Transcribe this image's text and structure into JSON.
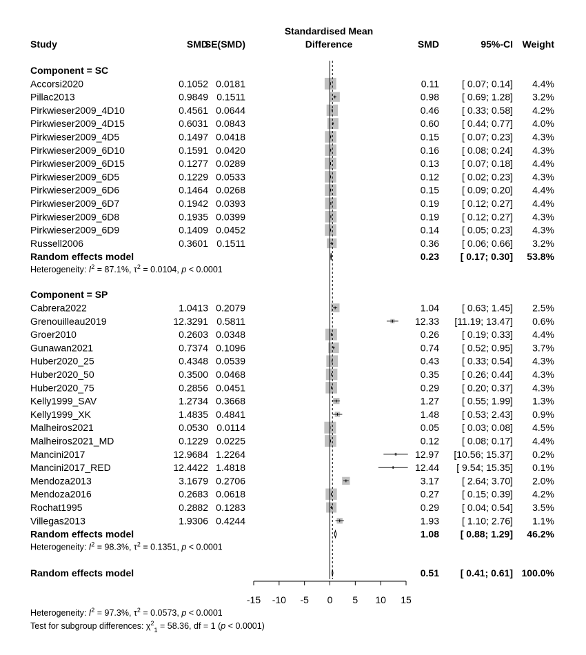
{
  "chart_data": {
    "type": "forest",
    "columns": {
      "study": "Study",
      "smd": "SMD",
      "se": "SE(SMD)",
      "plot_title_line1": "Standardised Mean",
      "plot_title_line2": "Difference",
      "smd_right": "SMD",
      "ci": "95%-CI",
      "weight": "Weight"
    },
    "x_axis": {
      "min": -15,
      "max": 15,
      "ticks": [
        -15,
        -10,
        -5,
        0,
        5,
        10,
        15
      ],
      "tick_labels": [
        "-15",
        "-10",
        "-5",
        "0",
        "5",
        "10",
        "15"
      ],
      "reference_line": 0,
      "pooled_line": 0.51
    },
    "subgroups": [
      {
        "header": "Component = SC",
        "studies": [
          {
            "name": "Accorsi2020",
            "smd": "0.1052",
            "se": "0.0181",
            "est": 0.11,
            "lo": 0.07,
            "hi": 0.14,
            "smd_txt": "0.11",
            "ci_txt": "[ 0.07;  0.14]",
            "weight": 4.4,
            "weight_txt": "4.4%"
          },
          {
            "name": "Pillac2013",
            "smd": "0.9849",
            "se": "0.1511",
            "est": 0.98,
            "lo": 0.69,
            "hi": 1.28,
            "smd_txt": "0.98",
            "ci_txt": "[ 0.69;  1.28]",
            "weight": 3.2,
            "weight_txt": "3.2%"
          },
          {
            "name": "Pirkwieser2009_4D10",
            "smd": "0.4561",
            "se": "0.0644",
            "est": 0.46,
            "lo": 0.33,
            "hi": 0.58,
            "smd_txt": "0.46",
            "ci_txt": "[ 0.33;  0.58]",
            "weight": 4.2,
            "weight_txt": "4.2%"
          },
          {
            "name": "Pirkwieser2009_4D15",
            "smd": "0.6031",
            "se": "0.0843",
            "est": 0.6,
            "lo": 0.44,
            "hi": 0.77,
            "smd_txt": "0.60",
            "ci_txt": "[ 0.44;  0.77]",
            "weight": 4.0,
            "weight_txt": "4.0%"
          },
          {
            "name": "Pirkwieser2009_4D5",
            "smd": "0.1497",
            "se": "0.0418",
            "est": 0.15,
            "lo": 0.07,
            "hi": 0.23,
            "smd_txt": "0.15",
            "ci_txt": "[ 0.07;  0.23]",
            "weight": 4.3,
            "weight_txt": "4.3%"
          },
          {
            "name": "Pirkwieser2009_6D10",
            "smd": "0.1591",
            "se": "0.0420",
            "est": 0.16,
            "lo": 0.08,
            "hi": 0.24,
            "smd_txt": "0.16",
            "ci_txt": "[ 0.08;  0.24]",
            "weight": 4.3,
            "weight_txt": "4.3%"
          },
          {
            "name": "Pirkwieser2009_6D15",
            "smd": "0.1277",
            "se": "0.0289",
            "est": 0.13,
            "lo": 0.07,
            "hi": 0.18,
            "smd_txt": "0.13",
            "ci_txt": "[ 0.07;  0.18]",
            "weight": 4.4,
            "weight_txt": "4.4%"
          },
          {
            "name": "Pirkwieser2009_6D5",
            "smd": "0.1229",
            "se": "0.0533",
            "est": 0.12,
            "lo": 0.02,
            "hi": 0.23,
            "smd_txt": "0.12",
            "ci_txt": "[ 0.02;  0.23]",
            "weight": 4.3,
            "weight_txt": "4.3%"
          },
          {
            "name": "Pirkwieser2009_6D6",
            "smd": "0.1464",
            "se": "0.0268",
            "est": 0.15,
            "lo": 0.09,
            "hi": 0.2,
            "smd_txt": "0.15",
            "ci_txt": "[ 0.09;  0.20]",
            "weight": 4.4,
            "weight_txt": "4.4%"
          },
          {
            "name": "Pirkwieser2009_6D7",
            "smd": "0.1942",
            "se": "0.0393",
            "est": 0.19,
            "lo": 0.12,
            "hi": 0.27,
            "smd_txt": "0.19",
            "ci_txt": "[ 0.12;  0.27]",
            "weight": 4.4,
            "weight_txt": "4.4%"
          },
          {
            "name": "Pirkwieser2009_6D8",
            "smd": "0.1935",
            "se": "0.0399",
            "est": 0.19,
            "lo": 0.12,
            "hi": 0.27,
            "smd_txt": "0.19",
            "ci_txt": "[ 0.12;  0.27]",
            "weight": 4.3,
            "weight_txt": "4.3%"
          },
          {
            "name": "Pirkwieser2009_6D9",
            "smd": "0.1409",
            "se": "0.0452",
            "est": 0.14,
            "lo": 0.05,
            "hi": 0.23,
            "smd_txt": "0.14",
            "ci_txt": "[ 0.05;  0.23]",
            "weight": 4.3,
            "weight_txt": "4.3%"
          },
          {
            "name": "Russell2006",
            "smd": "0.3601",
            "se": "0.1511",
            "est": 0.36,
            "lo": 0.06,
            "hi": 0.66,
            "smd_txt": "0.36",
            "ci_txt": "[ 0.06;  0.66]",
            "weight": 3.2,
            "weight_txt": "3.2%"
          }
        ],
        "pooled": {
          "label": "Random effects model",
          "est": 0.23,
          "lo": 0.17,
          "hi": 0.3,
          "smd_txt": "0.23",
          "ci_txt": "[ 0.17;  0.30]",
          "weight_txt": "53.8%"
        },
        "heterogeneity": {
          "prefix": "Heterogeneity: ",
          "I2": "I",
          "I2_value": " = 87.1%, ",
          "tau2": "τ",
          "tau2_value": " = 0.0104, ",
          "p": "p",
          "p_value": " < 0.0001"
        }
      },
      {
        "header": "Component = SP",
        "studies": [
          {
            "name": "Cabrera2022",
            "smd": "1.0413",
            "se": "0.2079",
            "est": 1.04,
            "lo": 0.63,
            "hi": 1.45,
            "smd_txt": "1.04",
            "ci_txt": "[ 0.63;  1.45]",
            "weight": 2.5,
            "weight_txt": "2.5%"
          },
          {
            "name": "Grenouilleau2019",
            "smd": "12.3291",
            "se": "0.5811",
            "est": 12.33,
            "lo": 11.19,
            "hi": 13.47,
            "smd_txt": "12.33",
            "ci_txt": "[11.19; 13.47]",
            "weight": 0.6,
            "weight_txt": "0.6%"
          },
          {
            "name": "Groer2010",
            "smd": "0.2603",
            "se": "0.0348",
            "est": 0.26,
            "lo": 0.19,
            "hi": 0.33,
            "smd_txt": "0.26",
            "ci_txt": "[ 0.19;  0.33]",
            "weight": 4.4,
            "weight_txt": "4.4%"
          },
          {
            "name": "Gunawan2021",
            "smd": "0.7374",
            "se": "0.1096",
            "est": 0.74,
            "lo": 0.52,
            "hi": 0.95,
            "smd_txt": "0.74",
            "ci_txt": "[ 0.52;  0.95]",
            "weight": 3.7,
            "weight_txt": "3.7%"
          },
          {
            "name": "Huber2020_25",
            "smd": "0.4348",
            "se": "0.0539",
            "est": 0.43,
            "lo": 0.33,
            "hi": 0.54,
            "smd_txt": "0.43",
            "ci_txt": "[ 0.33;  0.54]",
            "weight": 4.3,
            "weight_txt": "4.3%"
          },
          {
            "name": "Huber2020_50",
            "smd": "0.3500",
            "se": "0.0468",
            "est": 0.35,
            "lo": 0.26,
            "hi": 0.44,
            "smd_txt": "0.35",
            "ci_txt": "[ 0.26;  0.44]",
            "weight": 4.3,
            "weight_txt": "4.3%"
          },
          {
            "name": "Huber2020_75",
            "smd": "0.2856",
            "se": "0.0451",
            "est": 0.29,
            "lo": 0.2,
            "hi": 0.37,
            "smd_txt": "0.29",
            "ci_txt": "[ 0.20;  0.37]",
            "weight": 4.3,
            "weight_txt": "4.3%"
          },
          {
            "name": "Kelly1999_SAV",
            "smd": "1.2734",
            "se": "0.3668",
            "est": 1.27,
            "lo": 0.55,
            "hi": 1.99,
            "smd_txt": "1.27",
            "ci_txt": "[ 0.55;  1.99]",
            "weight": 1.3,
            "weight_txt": "1.3%"
          },
          {
            "name": "Kelly1999_XK",
            "smd": "1.4835",
            "se": "0.4841",
            "est": 1.48,
            "lo": 0.53,
            "hi": 2.43,
            "smd_txt": "1.48",
            "ci_txt": "[ 0.53;  2.43]",
            "weight": 0.9,
            "weight_txt": "0.9%"
          },
          {
            "name": "Malheiros2021",
            "smd": "0.0530",
            "se": "0.0114",
            "est": 0.05,
            "lo": 0.03,
            "hi": 0.08,
            "smd_txt": "0.05",
            "ci_txt": "[ 0.03;  0.08]",
            "weight": 4.5,
            "weight_txt": "4.5%"
          },
          {
            "name": "Malheiros2021_MD",
            "smd": "0.1229",
            "se": "0.0225",
            "est": 0.12,
            "lo": 0.08,
            "hi": 0.17,
            "smd_txt": "0.12",
            "ci_txt": "[ 0.08;  0.17]",
            "weight": 4.4,
            "weight_txt": "4.4%"
          },
          {
            "name": "Mancini2017",
            "smd": "12.9684",
            "se": "1.2264",
            "est": 12.97,
            "lo": 10.56,
            "hi": 15.37,
            "smd_txt": "12.97",
            "ci_txt": "[10.56; 15.37]",
            "weight": 0.2,
            "weight_txt": "0.2%"
          },
          {
            "name": "Mancini2017_RED",
            "smd": "12.4422",
            "se": "1.4818",
            "est": 12.44,
            "lo": 9.54,
            "hi": 15.35,
            "smd_txt": "12.44",
            "ci_txt": "[ 9.54; 15.35]",
            "weight": 0.1,
            "weight_txt": "0.1%"
          },
          {
            "name": "Mendoza2013",
            "smd": "3.1679",
            "se": "0.2706",
            "est": 3.17,
            "lo": 2.64,
            "hi": 3.7,
            "smd_txt": "3.17",
            "ci_txt": "[ 2.64;  3.70]",
            "weight": 2.0,
            "weight_txt": "2.0%"
          },
          {
            "name": "Mendoza2016",
            "smd": "0.2683",
            "se": "0.0618",
            "est": 0.27,
            "lo": 0.15,
            "hi": 0.39,
            "smd_txt": "0.27",
            "ci_txt": "[ 0.15;  0.39]",
            "weight": 4.2,
            "weight_txt": "4.2%"
          },
          {
            "name": "Rochat1995",
            "smd": "0.2882",
            "se": "0.1283",
            "est": 0.29,
            "lo": 0.04,
            "hi": 0.54,
            "smd_txt": "0.29",
            "ci_txt": "[ 0.04;  0.54]",
            "weight": 3.5,
            "weight_txt": "3.5%"
          },
          {
            "name": "Villegas2013",
            "smd": "1.9306",
            "se": "0.4244",
            "est": 1.93,
            "lo": 1.1,
            "hi": 2.76,
            "smd_txt": "1.93",
            "ci_txt": "[ 1.10;  2.76]",
            "weight": 1.1,
            "weight_txt": "1.1%"
          }
        ],
        "pooled": {
          "label": "Random effects model",
          "est": 1.08,
          "lo": 0.88,
          "hi": 1.29,
          "smd_txt": "1.08",
          "ci_txt": "[ 0.88;  1.29]",
          "weight_txt": "46.2%"
        },
        "heterogeneity": {
          "prefix": "Heterogeneity: ",
          "I2": "I",
          "I2_value": " = 98.3%, ",
          "tau2": "τ",
          "tau2_value": " = 0.1351, ",
          "p": "p",
          "p_value": " < 0.0001"
        }
      }
    ],
    "overall": {
      "label": "Random effects model",
      "est": 0.51,
      "lo": 0.41,
      "hi": 0.61,
      "smd_txt": "0.51",
      "ci_txt": "[ 0.41;  0.61]",
      "weight_txt": "100.0%"
    },
    "overall_heterogeneity": {
      "prefix": "Heterogeneity: ",
      "I2": "I",
      "I2_value": " = 97.3%, ",
      "tau2": "τ",
      "tau2_value": " = 0.0573, ",
      "p": "p",
      "p_value": " < 0.0001"
    },
    "subgroup_test": {
      "prefix": "Test for subgroup differences: ",
      "chi": "χ",
      "df_sub": "1",
      "stat": " = 58.36, df = 1 (",
      "p": "p",
      "p_value": " < 0.0001)"
    },
    "colors": {
      "box": "#c0c0c0",
      "line": "#000000"
    }
  }
}
